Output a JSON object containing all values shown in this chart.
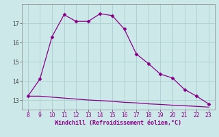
{
  "x": [
    8,
    9,
    10,
    11,
    12,
    13,
    14,
    15,
    16,
    17,
    18,
    19,
    20,
    21,
    22,
    23
  ],
  "y_main": [
    13.2,
    14.1,
    16.3,
    17.45,
    17.1,
    17.1,
    17.5,
    17.4,
    16.7,
    15.4,
    14.9,
    14.35,
    14.15,
    13.55,
    13.2,
    12.8
  ],
  "y_base": [
    13.2,
    13.2,
    13.15,
    13.1,
    13.05,
    13.0,
    12.97,
    12.93,
    12.88,
    12.85,
    12.8,
    12.77,
    12.73,
    12.7,
    12.67,
    12.63
  ],
  "line_color": "#880088",
  "bg_color": "#cce8e8",
  "grid_color": "#aad0d0",
  "xlabel": "Windchill (Refroidissement éolien,°C)",
  "xlabel_color": "#880088",
  "xlim": [
    7.5,
    23.5
  ],
  "ylim": [
    12.5,
    18.0
  ],
  "xticks": [
    8,
    9,
    10,
    11,
    12,
    13,
    14,
    15,
    16,
    17,
    18,
    19,
    20,
    21,
    22,
    23
  ],
  "yticks": [
    13,
    14,
    15,
    16,
    17
  ],
  "markersize": 2.5,
  "linewidth": 0.9
}
